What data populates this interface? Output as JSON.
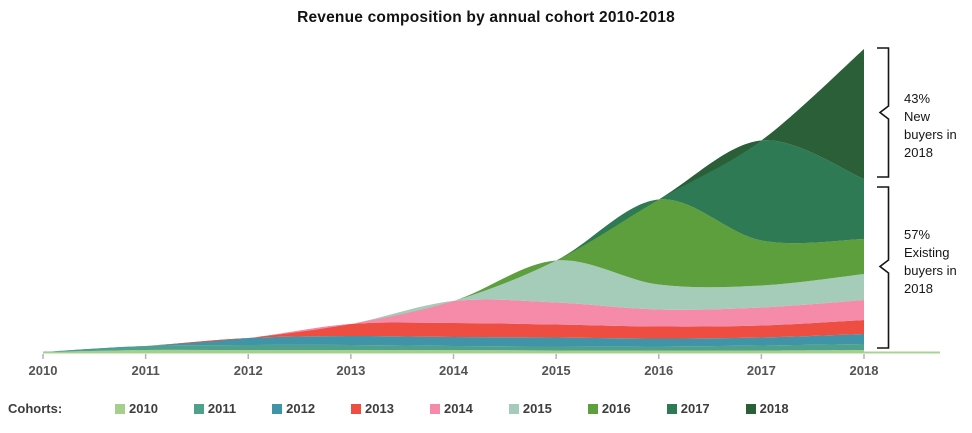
{
  "title": "Revenue composition by annual cohort 2010-2018",
  "legend": {
    "label": "Cohorts:"
  },
  "annotations": [
    {
      "id": "new-buyers",
      "text": "43%\nNew\nbuyers in\n2018"
    },
    {
      "id": "existing-buyers",
      "text": "57%\nExisting\nbuyers in\n2018"
    }
  ],
  "chart_data": {
    "type": "area",
    "stacked": true,
    "smoothed": true,
    "title": "Revenue composition by annual cohort 2010-2018",
    "xlabel": "",
    "ylabel": "",
    "y_axis_shown": false,
    "unit": "relative revenue (indexed; chart shows no numeric y-axis)",
    "grid": false,
    "legend_label": "Cohorts:",
    "legend_position": "bottom",
    "x": [
      2010,
      2011,
      2012,
      2013,
      2014,
      2015,
      2016,
      2017,
      2018
    ],
    "x_tick_labels": [
      "2010",
      "2011",
      "2012",
      "2013",
      "2014",
      "2015",
      "2016",
      "2017",
      "2018"
    ],
    "series": [
      {
        "name": "2010",
        "color": "#a4cf8c",
        "values": [
          1,
          3,
          3,
          3,
          3,
          2.5,
          2.5,
          2.5,
          3
        ]
      },
      {
        "name": "2011",
        "color": "#4fa18c",
        "values": [
          0,
          4,
          5,
          5,
          4,
          4,
          4,
          5,
          6
        ]
      },
      {
        "name": "2012",
        "color": "#3f95a7",
        "values": [
          0,
          0,
          7,
          9,
          9,
          9,
          8,
          8,
          10
        ]
      },
      {
        "name": "2013",
        "color": "#ee4e41",
        "values": [
          0,
          0,
          0,
          12,
          14,
          13,
          12,
          12,
          14
        ]
      },
      {
        "name": "2014",
        "color": "#f68aa9",
        "values": [
          0,
          0,
          0,
          0,
          22,
          22,
          17,
          18,
          20
        ]
      },
      {
        "name": "2015",
        "color": "#a5cbb9",
        "values": [
          0,
          0,
          0,
          0,
          0,
          42,
          25,
          22,
          26
        ]
      },
      {
        "name": "2016",
        "color": "#5d9e3d",
        "values": [
          0,
          0,
          0,
          0,
          0,
          0,
          85,
          45,
          35
        ]
      },
      {
        "name": "2017",
        "color": "#2e7a54",
        "values": [
          0,
          0,
          0,
          0,
          0,
          0,
          0,
          100,
          60
        ]
      },
      {
        "name": "2018",
        "color": "#2b5f37",
        "values": [
          0,
          0,
          0,
          0,
          0,
          0,
          0,
          0,
          130
        ]
      }
    ],
    "share_2018": {
      "new_buyers_pct": 43,
      "existing_buyers_pct": 57
    },
    "axis_line_color": "#a8d296",
    "tick_color": "#b3b3b3"
  }
}
